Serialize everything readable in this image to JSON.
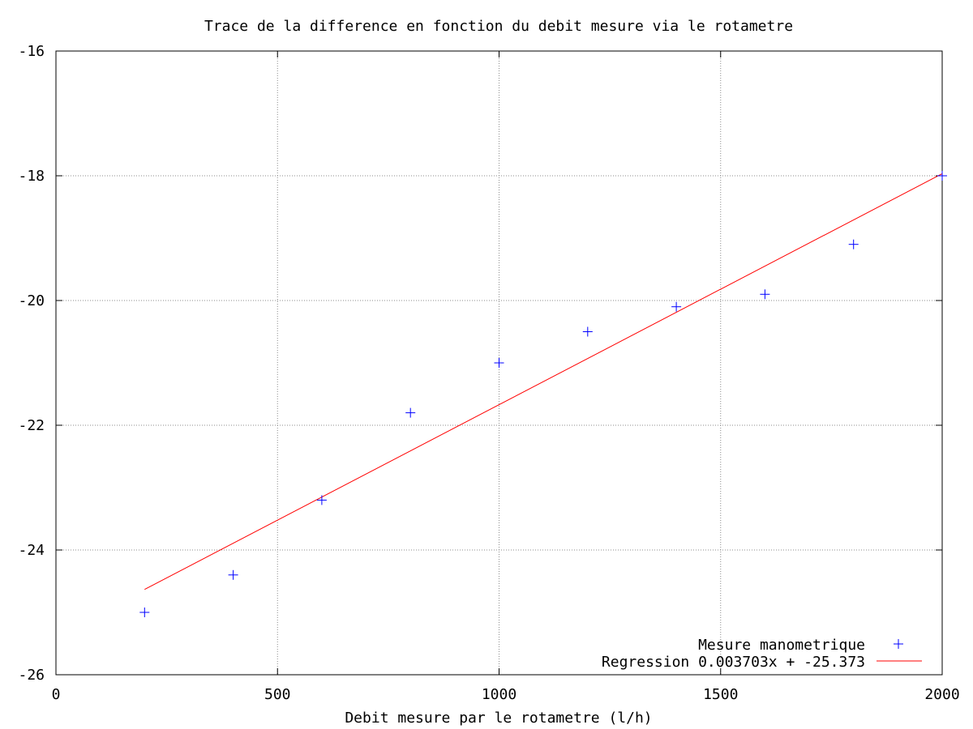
{
  "chart_data": {
    "type": "scatter",
    "title": "Trace de la difference en fonction du debit mesure via le rotametre",
    "xlabel": "Debit mesure par le rotametre (l/h)",
    "ylabel": "",
    "xlim": [
      0,
      2000
    ],
    "ylim": [
      -26,
      -16
    ],
    "xticks": [
      0,
      500,
      1000,
      1500,
      2000
    ],
    "yticks": [
      -26,
      -24,
      -22,
      -20,
      -18,
      -16
    ],
    "xtick_labels": [
      "0",
      "500",
      "1000",
      "1500",
      "2000"
    ],
    "ytick_labels": [
      "-26",
      "-24",
      "-22",
      "-20",
      "-18",
      "-16"
    ],
    "grid": true,
    "legend_position": "bottom-right",
    "series": [
      {
        "name": "Mesure manometrique",
        "type": "scatter",
        "marker": "plus",
        "color": "#0000ff",
        "x": [
          200,
          400,
          600,
          800,
          1000,
          1200,
          1400,
          1600,
          1800,
          2000
        ],
        "y": [
          -25.0,
          -24.4,
          -23.2,
          -21.8,
          -21.0,
          -20.5,
          -20.1,
          -19.9,
          -19.1,
          -18.0
        ]
      },
      {
        "name": "Regression 0.003703x + -25.373",
        "type": "line",
        "color": "#ff0000",
        "x": [
          200,
          2000
        ],
        "y": [
          -24.6324,
          -17.967
        ]
      }
    ]
  }
}
